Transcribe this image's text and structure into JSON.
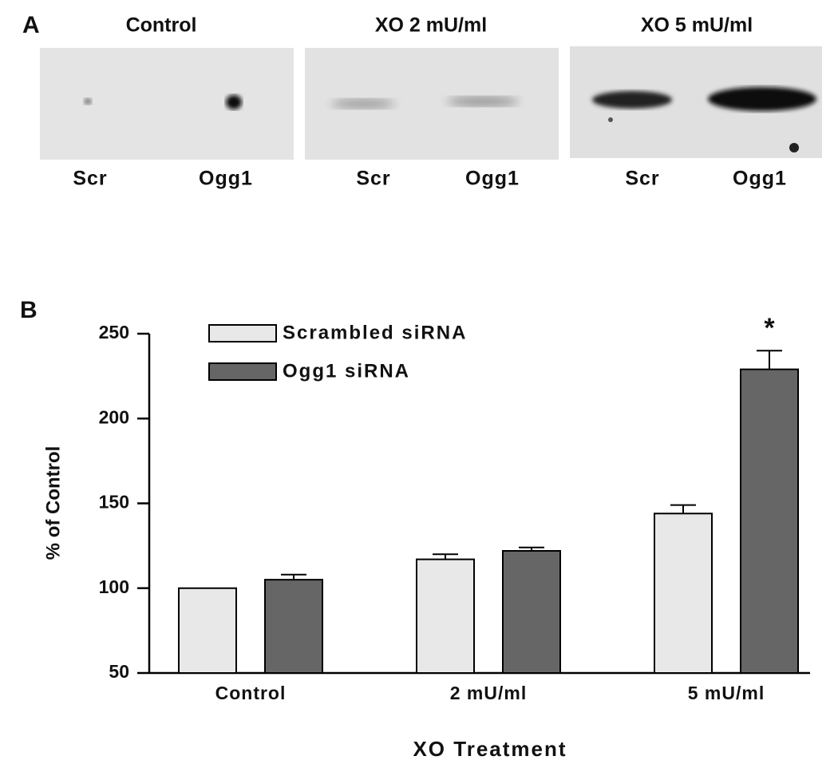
{
  "panel_a": {
    "label": "A",
    "lanes": [
      {
        "title": "Control",
        "labels": [
          "Scr",
          "Ogg1"
        ]
      },
      {
        "title": "XO 2 mU/ml",
        "labels": [
          "Scr",
          "Ogg1"
        ]
      },
      {
        "title": "XO 5 mU/ml",
        "labels": [
          "Scr",
          "Ogg1"
        ]
      }
    ]
  },
  "panel_b": {
    "label": "B"
  },
  "chart_data": {
    "type": "bar",
    "y_label": "% of Control",
    "x_label": "XO Treatment",
    "categories": [
      "Control",
      "2 mU/ml",
      "5 mU/ml"
    ],
    "series": [
      {
        "name": "Scrambled siRNA",
        "color": "#e8e8e8",
        "values": [
          100,
          117,
          144
        ],
        "errors": [
          null,
          3,
          5
        ]
      },
      {
        "name": "Ogg1 siRNA",
        "color": "#666666",
        "values": [
          105,
          122,
          229
        ],
        "errors": [
          3,
          2,
          11
        ],
        "annotations": [
          null,
          null,
          "*"
        ]
      }
    ],
    "ylim": [
      50,
      250
    ],
    "yticks": [
      50,
      100,
      150,
      200,
      250
    ],
    "grid": false
  }
}
